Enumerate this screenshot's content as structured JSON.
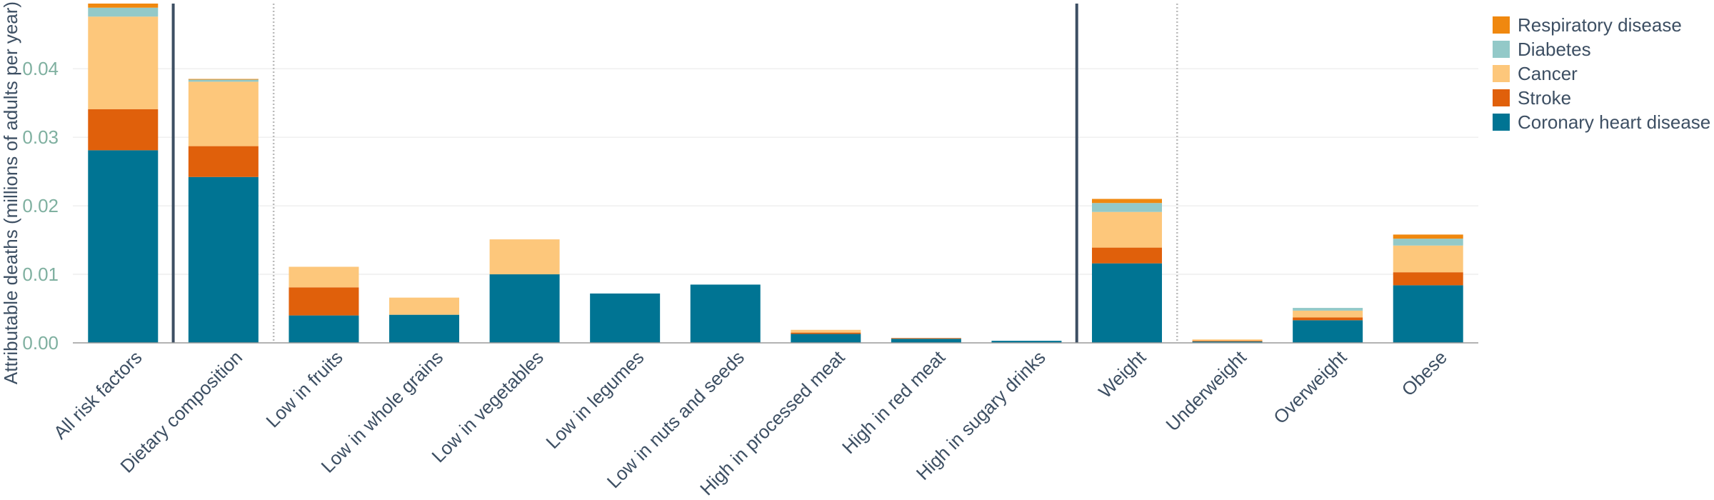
{
  "chart_data": {
    "type": "bar",
    "stacked": true,
    "title": "",
    "xlabel": "",
    "ylabel": "Attributable deaths (millions of adults per year)",
    "ylim": [
      0,
      0.0495
    ],
    "yticks": [
      "0.00",
      "0.01",
      "0.02",
      "0.03",
      "0.04"
    ],
    "grid": true,
    "legend_position": "top-right",
    "categories": [
      "All risk factors",
      "Dietary composition",
      "Low in fruits",
      "Low in whole grains",
      "Low in vegetables",
      "Low in legumes",
      "Low in nuts and seeds",
      "High in processed meat",
      "High in red meat",
      "High in sugary drinks",
      "Weight",
      "Underweight",
      "Overweight",
      "Obese"
    ],
    "series": [
      {
        "name": "Coronary heart disease",
        "color": "#007493",
        "values": [
          0.0281,
          0.0242,
          0.004,
          0.0041,
          0.01,
          0.0072,
          0.0085,
          0.0013,
          0.0006,
          0.0003,
          0.0116,
          0.0002,
          0.0033,
          0.0084
        ]
      },
      {
        "name": "Stroke",
        "color": "#e0600b",
        "values": [
          0.006,
          0.0045,
          0.0041,
          0.0,
          0.0,
          0.0,
          0.0,
          0.0002,
          0.0001,
          0.0,
          0.0023,
          0.0001,
          0.0004,
          0.0019
        ]
      },
      {
        "name": "Cancer",
        "color": "#fdc77b",
        "values": [
          0.0135,
          0.0094,
          0.003,
          0.0025,
          0.0051,
          0.0,
          0.0,
          0.0004,
          0.0,
          0.0,
          0.0052,
          0.0002,
          0.001,
          0.0039
        ]
      },
      {
        "name": "Diabetes",
        "color": "#93c9c8",
        "values": [
          0.0013,
          0.0003,
          0.0,
          0.0,
          0.0,
          0.0,
          0.0,
          0.0,
          0.0,
          0.0,
          0.0013,
          0.0,
          0.0004,
          0.001
        ]
      },
      {
        "name": "Respiratory disease",
        "color": "#f0880f",
        "values": [
          0.0006,
          0.0001,
          0.0,
          0.0,
          0.0,
          0.0,
          0.0,
          0.0,
          0.0,
          0.0,
          0.0006,
          0.0,
          0.0,
          0.0006
        ]
      }
    ],
    "legend_order": [
      "Respiratory disease",
      "Diabetes",
      "Cancer",
      "Stroke",
      "Coronary heart disease"
    ],
    "group_separators": [
      {
        "between": [
          "All risk factors",
          "Dietary composition"
        ],
        "style": "solid"
      },
      {
        "between": [
          "Dietary composition",
          "Low in fruits"
        ],
        "style": "dotted"
      },
      {
        "between": [
          "High in sugary drinks",
          "Weight"
        ],
        "style": "solid"
      },
      {
        "between": [
          "Weight",
          "Underweight"
        ],
        "style": "dotted"
      }
    ]
  }
}
